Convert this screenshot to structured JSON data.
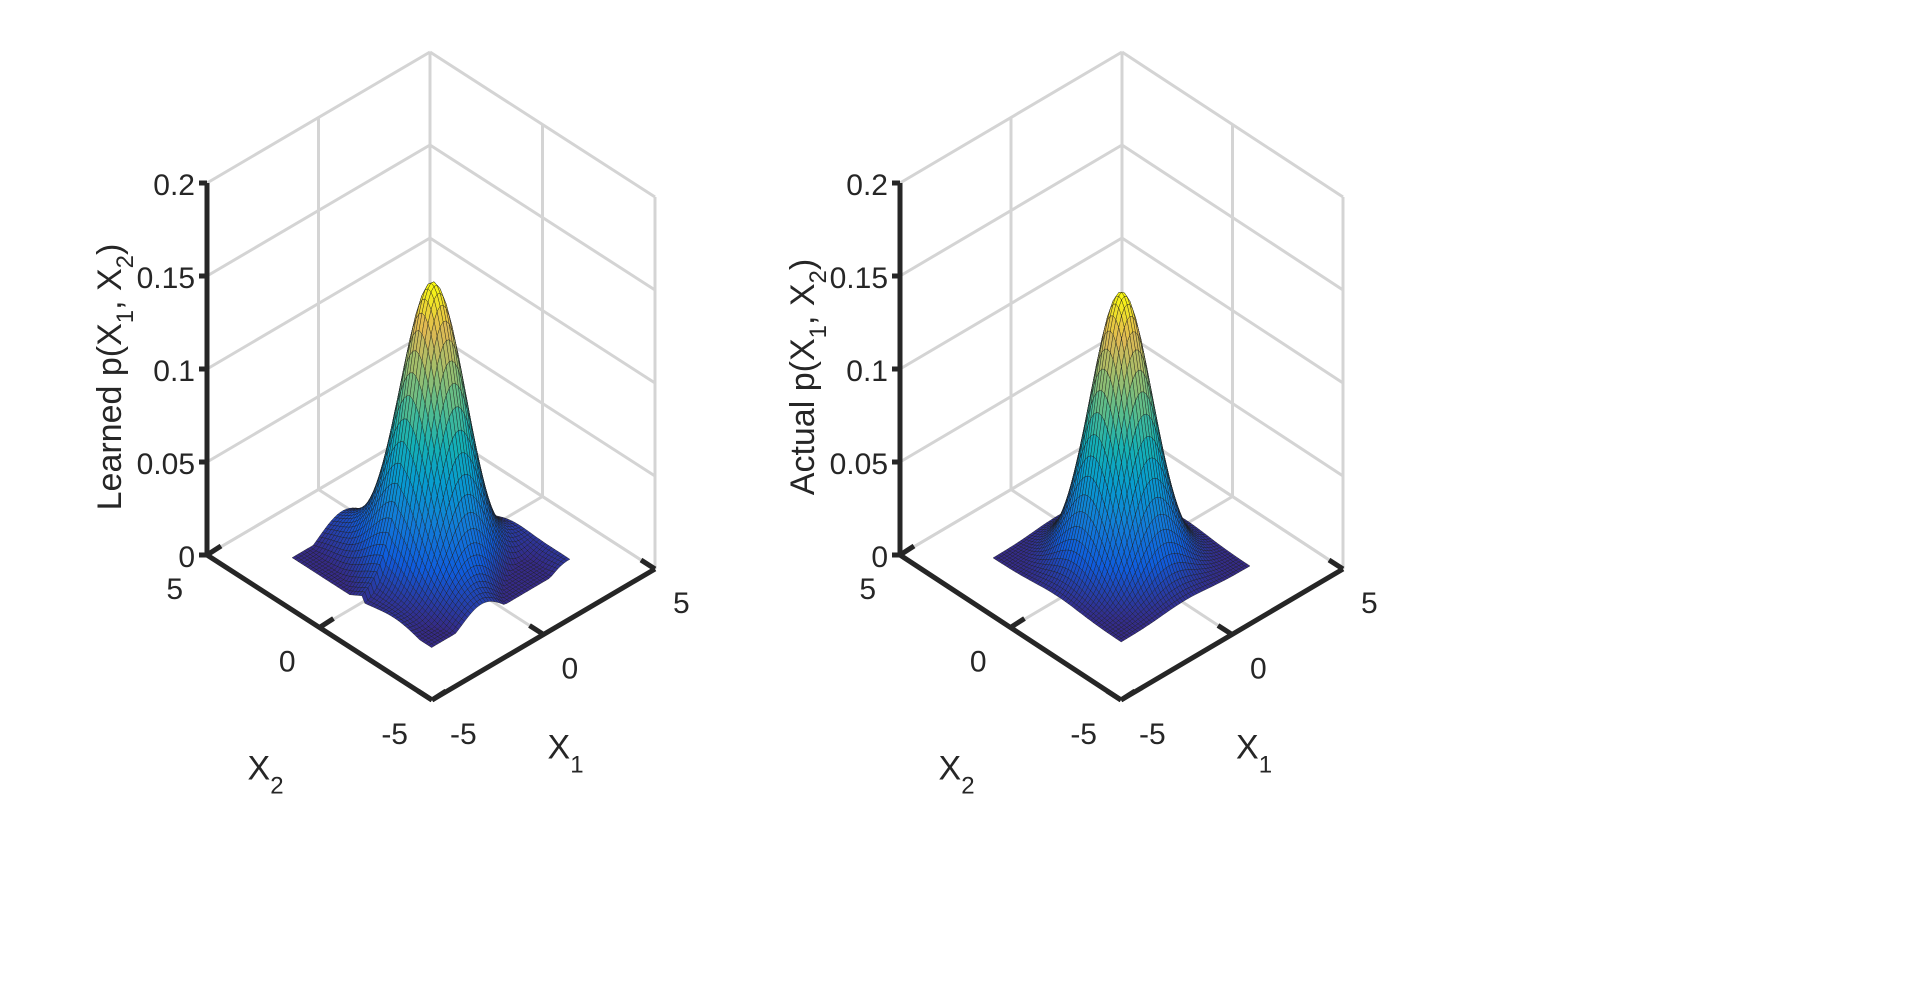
{
  "chart_data": [
    {
      "type": "surface",
      "surface": "learned",
      "zlabel": "Learned p(X₁, X₂)",
      "zlabel_parts": {
        "prefix": "Learned p(X",
        "sub1": "1",
        "mid": ", X",
        "sub2": "2",
        "suffix": ")"
      },
      "xlabel": {
        "main": "X",
        "sub": "1"
      },
      "ylabel": {
        "main": "X",
        "sub": "2"
      },
      "x_range": [
        -5,
        5
      ],
      "y_range": [
        -5,
        5
      ],
      "z_range": [
        0,
        0.2
      ],
      "x_ticks": [
        "-5",
        "0",
        "5"
      ],
      "y_ticks": [
        "-5",
        "0",
        "5"
      ],
      "z_ticks": [
        "0",
        "0.05",
        "0.1",
        "0.15",
        "0.2"
      ],
      "peak": 0.15,
      "grid": true,
      "colormap": "parula"
    },
    {
      "type": "surface",
      "surface": "actual",
      "zlabel": "Actual p(X₁, X₂)",
      "zlabel_parts": {
        "prefix": "Actual p(X",
        "sub1": "1",
        "mid": ", X",
        "sub2": "2",
        "suffix": ")"
      },
      "xlabel": {
        "main": "X",
        "sub": "1"
      },
      "ylabel": {
        "main": "X",
        "sub": "2"
      },
      "x_range": [
        -5,
        5
      ],
      "y_range": [
        -5,
        5
      ],
      "z_range": [
        0,
        0.2
      ],
      "x_ticks": [
        "-5",
        "0",
        "5"
      ],
      "y_ticks": [
        "-5",
        "0",
        "5"
      ],
      "z_ticks": [
        "0",
        "0.05",
        "0.1",
        "0.15",
        "0.2"
      ],
      "peak": 0.145,
      "grid": true,
      "colormap": "parula"
    }
  ]
}
